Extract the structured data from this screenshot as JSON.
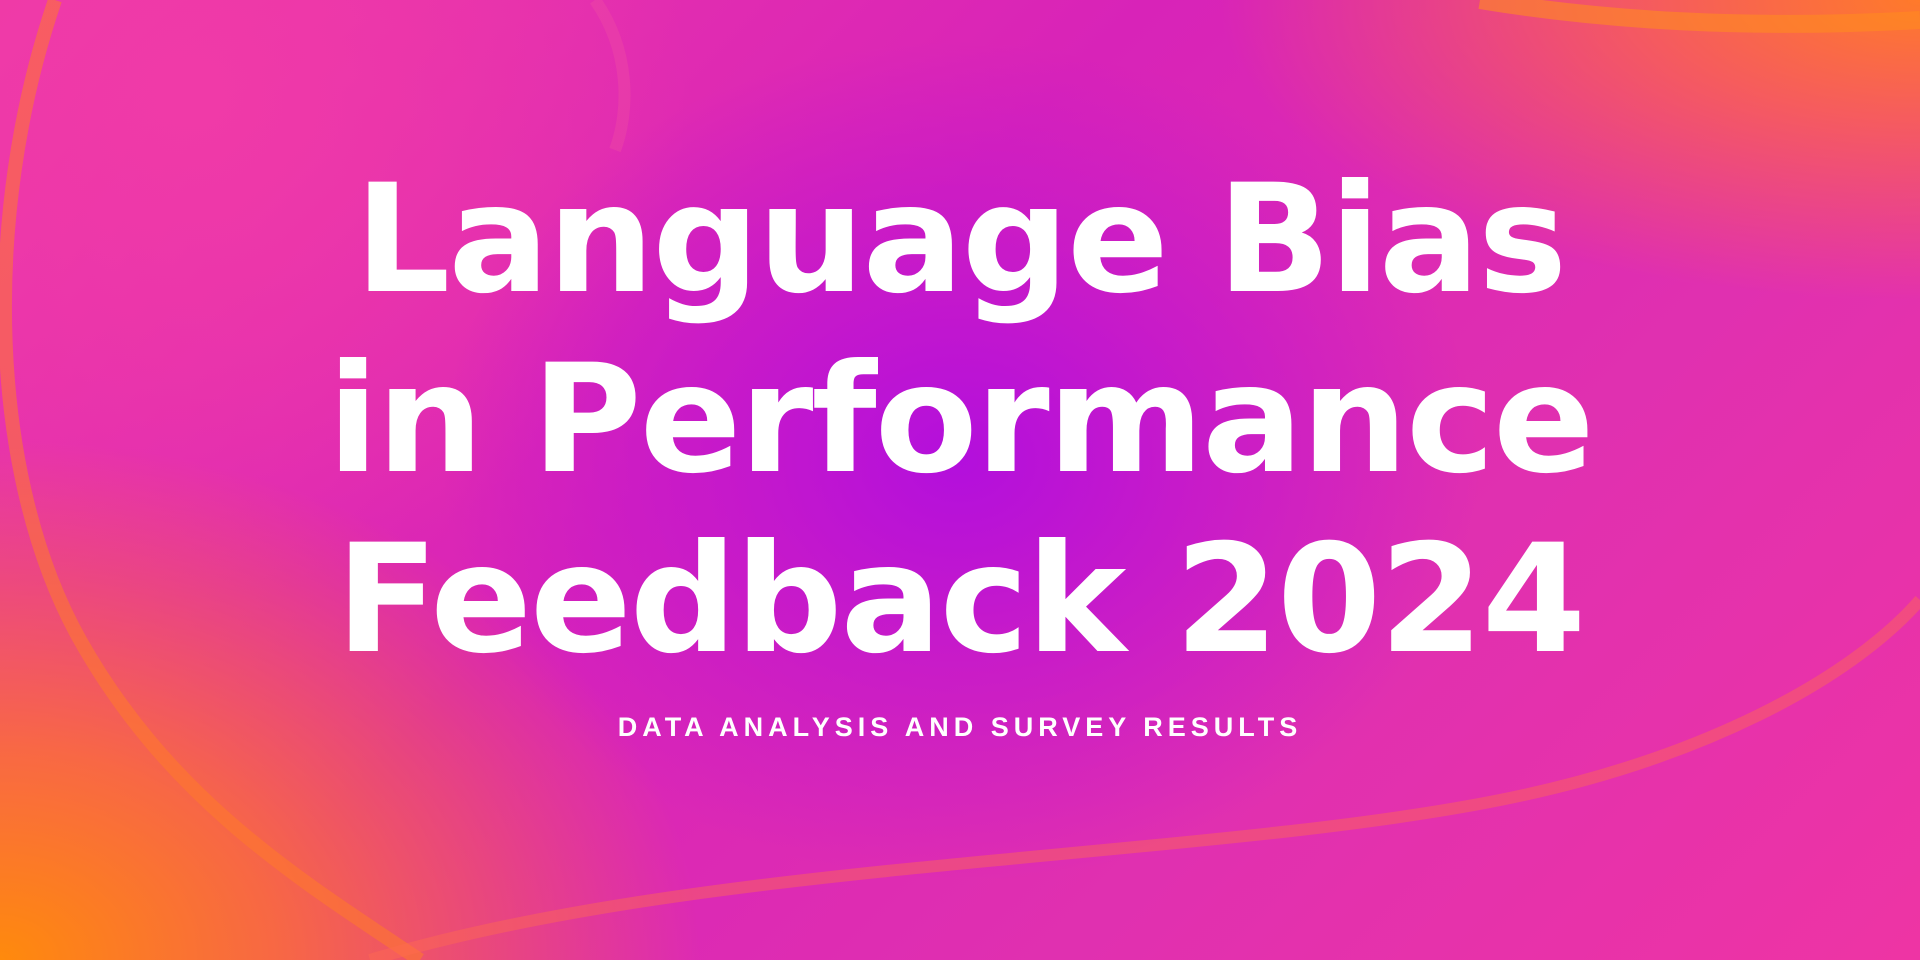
{
  "title_lines": [
    "Language Bias",
    "in Performance",
    "Feedback 2024"
  ],
  "subtitle": "DATA ANALYSIS AND SURVEY RESULTS",
  "colors": {
    "center": "#b30fdc",
    "pink": "#ee3aa6",
    "orange": "#ff8a0c",
    "text": "#ffffff"
  }
}
